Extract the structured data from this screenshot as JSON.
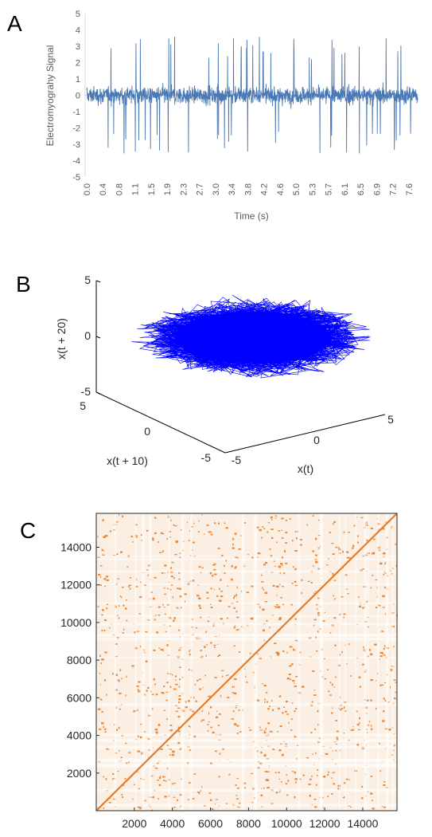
{
  "panels": {
    "a": "A",
    "b": "B",
    "c": "C"
  },
  "chart_data": [
    {
      "panel": "A",
      "type": "line",
      "xlabel": "Time (s)",
      "ylabel": "Electromyograhy Signal",
      "ylim": [
        -5,
        5
      ],
      "yticks": [
        5,
        4,
        3,
        2,
        1,
        0,
        -1,
        -2,
        -3,
        -4,
        -5
      ],
      "xticks": [
        "0.0",
        "0.4",
        "0.8",
        "1.1",
        "1.5",
        "1.9",
        "2.3",
        "2.7",
        "3.0",
        "3.4",
        "3.8",
        "4.2",
        "4.6",
        "5.0",
        "5.3",
        "5.7",
        "6.1",
        "6.5",
        "6.9",
        "7.2",
        "7.6"
      ],
      "xlim": [
        0,
        7.8
      ],
      "series": [
        {
          "color": "#4a78b5",
          "amplitude_peak": 3.6,
          "amplitude_dense": 1.0
        }
      ]
    },
    {
      "panel": "B",
      "type": "line",
      "xlabel": "x(t)",
      "ylabel": "x(t + 10)",
      "zlabel": "x(t + 20)",
      "xticks": [
        "-5",
        "0",
        "5"
      ],
      "yticks": [
        "-5",
        "0",
        "5"
      ],
      "zticks": [
        "5",
        "0",
        "-5"
      ],
      "range": [
        -5,
        5
      ],
      "series": [
        {
          "color": "#0000ff"
        }
      ]
    },
    {
      "panel": "C",
      "type": "heatmap",
      "xticks": [
        "2000",
        "4000",
        "6000",
        "8000",
        "10000",
        "12000",
        "14000"
      ],
      "yticks": [
        "14000",
        "12000",
        "10000",
        "8000",
        "6000",
        "4000",
        "2000"
      ],
      "xlim": [
        0,
        15800
      ],
      "ylim": [
        0,
        15800
      ],
      "colors": {
        "point": "#e8883a",
        "diagonal": "#e47c2a"
      }
    }
  ]
}
